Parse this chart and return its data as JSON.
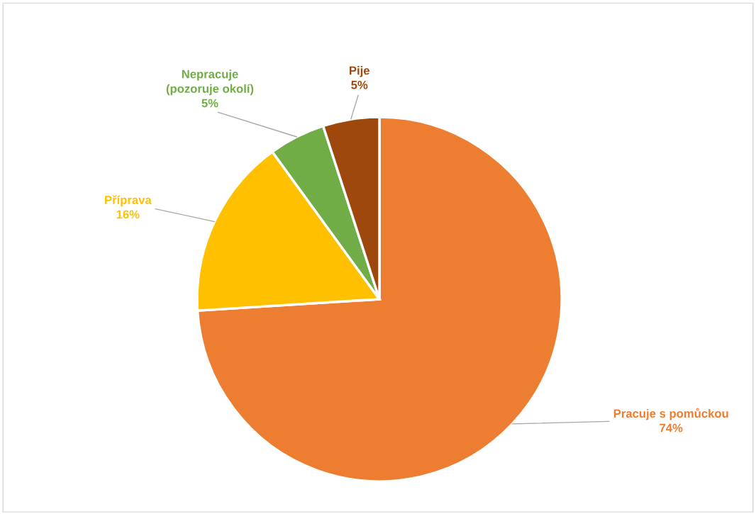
{
  "chart_data": {
    "type": "pie",
    "categories": [
      "Pracuje s pomůckou",
      "Příprava",
      "Nepracuje\n(pozoruje okolí)",
      "Pije"
    ],
    "values": [
      74,
      16,
      5,
      5
    ],
    "colors": [
      "#ed7d31",
      "#ffc000",
      "#70ad47",
      "#9e480e"
    ],
    "value_labels": [
      "74%",
      "16%",
      "5%",
      "5%"
    ]
  }
}
